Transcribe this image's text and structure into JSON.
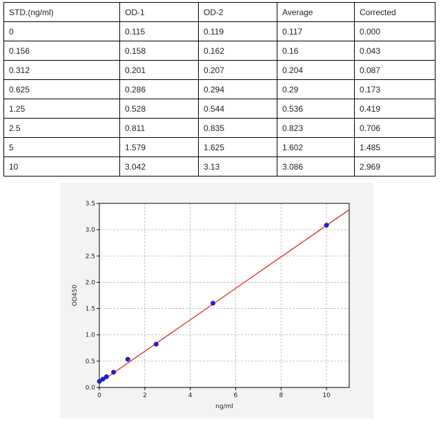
{
  "table": {
    "headers": [
      "STD.(ng/ml)",
      "OD-1",
      "OD-2",
      "Average",
      "Corrected"
    ],
    "rows": [
      [
        "0",
        "0.115",
        "0.119",
        "0.117",
        "0.000"
      ],
      [
        "0.156",
        "0.158",
        "0.162",
        "0.16",
        "0.043"
      ],
      [
        "0.312",
        "0.201",
        "0.207",
        "0.204",
        "0.087"
      ],
      [
        "0.625",
        "0.286",
        "0.294",
        "0.29",
        "0.173"
      ],
      [
        "1.25",
        "0.528",
        "0.544",
        "0.536",
        "0.419"
      ],
      [
        "2.5",
        "0.811",
        "0.835",
        "0.823",
        "0.706"
      ],
      [
        "5",
        "1.579",
        "1.625",
        "1.602",
        "1.485"
      ],
      [
        "10",
        "3.042",
        "3.13",
        "3.086",
        "2.969"
      ]
    ]
  },
  "chart_data": {
    "type": "scatter",
    "title": "",
    "xlabel": "ng/ml",
    "ylabel": "OD450",
    "xlim": [
      0,
      11
    ],
    "ylim": [
      0,
      3.5
    ],
    "xticks": [
      0,
      2,
      4,
      6,
      8,
      10
    ],
    "yticks": [
      0.0,
      0.5,
      1.0,
      1.5,
      2.0,
      2.5,
      3.0,
      3.5
    ],
    "xtick_labels": [
      "0",
      "2",
      "4",
      "6",
      "8",
      "10"
    ],
    "ytick_labels": [
      "0.0",
      "0.5",
      "1.0",
      "1.5",
      "2.0",
      "2.5",
      "3.0",
      "3.5"
    ],
    "grid": true,
    "points": {
      "x": [
        0,
        0.156,
        0.312,
        0.625,
        1.25,
        2.5,
        5,
        10
      ],
      "y": [
        0.117,
        0.16,
        0.204,
        0.29,
        0.536,
        0.823,
        1.602,
        3.086
      ],
      "color": "#1f1fd0"
    },
    "fit_line": {
      "x": [
        0,
        11
      ],
      "y": [
        0.09,
        3.38
      ],
      "color": "#d62728"
    }
  }
}
